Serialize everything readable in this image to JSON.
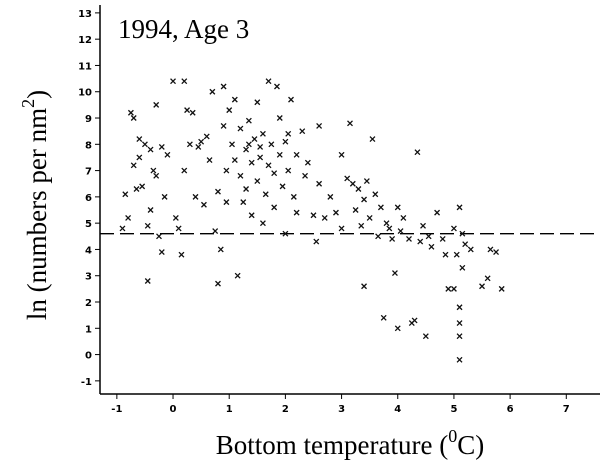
{
  "chart_data": {
    "type": "scatter",
    "title": "1994, Age 3",
    "xlabel": {
      "text": "Bottom temperature (",
      "sup": "0",
      "end": "C)"
    },
    "ylabel": {
      "text": "ln (numbers per nm",
      "sup": "2",
      "end": ")"
    },
    "xlim": [
      -1.3,
      7.6
    ],
    "xticks": [
      -1,
      0,
      1,
      2,
      3,
      4,
      5,
      6,
      7
    ],
    "ylim": [
      -1.5,
      13.3
    ],
    "yticks": [
      -1,
      0,
      1,
      2,
      3,
      4,
      5,
      6,
      7,
      8,
      9,
      10,
      11,
      12,
      13
    ],
    "hline": 4.6,
    "color": "#111111",
    "x": [
      -0.9,
      -0.85,
      -0.8,
      -0.75,
      -0.7,
      -0.7,
      -0.65,
      -0.6,
      -0.55,
      -0.5,
      -0.45,
      -0.4,
      -0.4,
      -0.35,
      -0.3,
      -0.3,
      -0.25,
      -0.2,
      -0.2,
      -0.15,
      -0.45,
      -0.1,
      0.0,
      0.05,
      0.1,
      0.15,
      0.2,
      0.2,
      0.3,
      0.35,
      0.4,
      0.45,
      0.5,
      0.55,
      0.6,
      0.65,
      0.7,
      0.75,
      0.8,
      0.8,
      0.85,
      0.9,
      0.9,
      0.95,
      1.0,
      1.05,
      1.1,
      1.1,
      1.15,
      1.2,
      1.2,
      1.25,
      1.3,
      1.3,
      1.35,
      1.4,
      1.4,
      1.45,
      1.5,
      1.5,
      1.55,
      1.6,
      1.6,
      1.65,
      1.7,
      1.7,
      1.75,
      1.8,
      1.8,
      1.85,
      1.9,
      1.9,
      1.95,
      2.0,
      2.0,
      2.05,
      2.1,
      2.15,
      2.2,
      2.2,
      2.3,
      2.35,
      2.4,
      2.5,
      2.55,
      2.6,
      2.6,
      2.7,
      2.8,
      2.9,
      3.0,
      3.0,
      3.1,
      3.15,
      3.2,
      3.25,
      3.3,
      3.35,
      3.4,
      3.4,
      3.45,
      3.5,
      3.55,
      3.6,
      3.65,
      3.7,
      3.75,
      3.8,
      3.85,
      3.9,
      3.95,
      4.0,
      4.0,
      4.05,
      4.1,
      4.2,
      4.25,
      4.3,
      4.35,
      4.4,
      4.45,
      4.5,
      4.55,
      4.6,
      4.7,
      4.8,
      4.85,
      4.9,
      5.0,
      5.0,
      5.05,
      5.1,
      5.1,
      5.1,
      5.1,
      5.1,
      5.15,
      5.15,
      5.2,
      5.3,
      5.5,
      5.6,
      5.65,
      5.75,
      5.85,
      2.05,
      1.35,
      1.55,
      0.95,
      0.25,
      -0.6
    ],
    "y": [
      4.8,
      6.1,
      5.2,
      9.2,
      9.0,
      7.2,
      6.3,
      7.5,
      6.4,
      8.0,
      4.9,
      5.5,
      7.8,
      7.0,
      9.5,
      6.8,
      4.5,
      3.9,
      7.9,
      6.0,
      2.8,
      7.6,
      10.4,
      5.2,
      4.8,
      3.8,
      10.4,
      7.0,
      8.0,
      9.2,
      6.0,
      7.9,
      8.1,
      5.7,
      8.3,
      7.4,
      10.0,
      4.7,
      2.7,
      6.2,
      4.0,
      10.2,
      8.7,
      7.0,
      9.3,
      8.0,
      9.7,
      7.4,
      3.0,
      6.8,
      8.6,
      5.8,
      7.8,
      6.3,
      8.9,
      7.3,
      5.3,
      8.2,
      9.6,
      6.6,
      7.5,
      8.4,
      5.0,
      6.1,
      10.4,
      7.2,
      8.0,
      5.6,
      6.9,
      10.2,
      7.6,
      9.0,
      6.4,
      8.1,
      4.6,
      7.0,
      9.7,
      6.0,
      7.6,
      5.4,
      8.5,
      6.8,
      7.3,
      5.3,
      4.3,
      8.7,
      6.5,
      5.2,
      6.0,
      5.4,
      7.6,
      4.8,
      6.7,
      8.8,
      6.5,
      5.5,
      6.3,
      4.9,
      2.6,
      5.9,
      6.6,
      5.2,
      8.2,
      6.1,
      4.5,
      5.6,
      1.4,
      5.0,
      4.8,
      4.4,
      3.1,
      1.0,
      5.6,
      4.7,
      5.2,
      4.4,
      1.2,
      1.3,
      7.7,
      4.3,
      4.9,
      0.7,
      4.5,
      4.1,
      5.4,
      4.4,
      3.8,
      2.5,
      2.5,
      4.8,
      3.8,
      5.6,
      1.8,
      1.2,
      0.7,
      -0.2,
      3.3,
      4.6,
      4.2,
      4.0,
      2.6,
      2.9,
      4.0,
      3.9,
      2.5,
      8.4,
      8.0,
      7.9,
      5.8,
      9.3,
      8.2
    ]
  }
}
